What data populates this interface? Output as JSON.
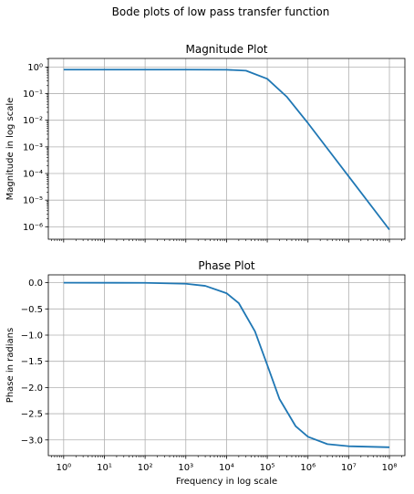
{
  "suptitle": "Bode plots of low pass transfer function",
  "colors": {
    "line": "#1f77b4",
    "grid": "#b0b0b0",
    "axes": "#000000"
  },
  "chart_data": [
    {
      "type": "line",
      "title": "Magnitude Plot",
      "xlabel": "",
      "ylabel": "Magnitude in log scale",
      "xscale": "log",
      "yscale": "log",
      "xlim": [
        0.42,
        240000000
      ],
      "ylim": [
        3.4e-07,
        2.1
      ],
      "grid": true,
      "x_ticks": [
        1,
        10,
        100,
        1000,
        10000,
        100000,
        1000000,
        10000000,
        100000000
      ],
      "x_tick_labels_visible": false,
      "y_ticks": [
        1,
        0.1,
        0.01,
        0.001,
        0.0001,
        1e-05,
        1e-06
      ],
      "y_tick_labels": [
        "10^0",
        "10^-1",
        "10^-2",
        "10^-3",
        "10^-4",
        "10^-5",
        "10^-6"
      ],
      "series": [
        {
          "x": [
            1,
            10,
            100,
            1000,
            10000,
            30000,
            100000,
            300000,
            1000000,
            10000000,
            100000000
          ],
          "y": [
            0.8,
            0.8,
            0.8,
            0.8,
            0.79,
            0.73,
            0.36,
            0.077,
            0.0078,
            7.8e-05,
            7.8e-07
          ]
        }
      ]
    },
    {
      "type": "line",
      "title": "Phase Plot",
      "xlabel": "Frequency in log scale",
      "ylabel": "Phase in radians",
      "xscale": "log",
      "yscale": "linear",
      "xlim": [
        0.42,
        240000000
      ],
      "ylim": [
        -3.3,
        0.15
      ],
      "grid": true,
      "x_ticks": [
        1,
        10,
        100,
        1000,
        10000,
        100000,
        1000000,
        10000000,
        100000000
      ],
      "x_tick_labels": [
        "10^0",
        "10^1",
        "10^2",
        "10^3",
        "10^4",
        "10^5",
        "10^6",
        "10^7",
        "10^8"
      ],
      "y_ticks": [
        0.0,
        -0.5,
        -1.0,
        -1.5,
        -2.0,
        -2.5,
        -3.0
      ],
      "y_tick_labels": [
        "0.0",
        "−0.5",
        "−1.0",
        "−1.5",
        "−2.0",
        "−2.5",
        "−3.0"
      ],
      "series": [
        {
          "x": [
            1,
            100,
            1000,
            3000,
            10000,
            20000,
            50000,
            100000,
            200000,
            500000,
            1000000,
            3000000,
            10000000,
            100000000
          ],
          "y": [
            0.0,
            -0.002,
            -0.02,
            -0.06,
            -0.2,
            -0.39,
            -0.93,
            -1.57,
            -2.22,
            -2.74,
            -2.94,
            -3.08,
            -3.12,
            -3.14
          ]
        }
      ]
    }
  ]
}
